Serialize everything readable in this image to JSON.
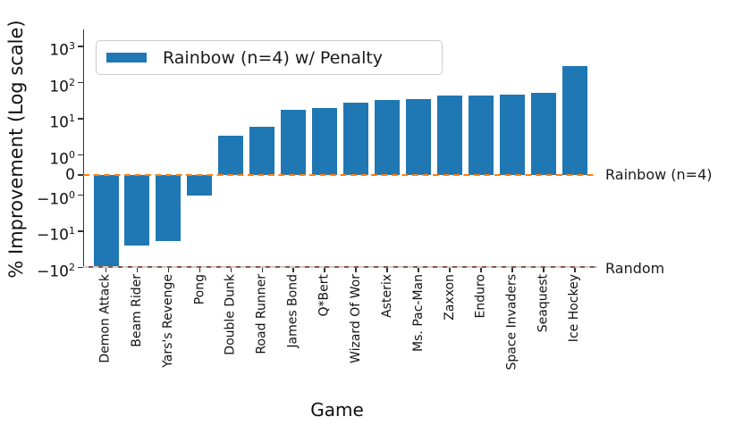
{
  "chart_data": {
    "type": "bar",
    "title": "",
    "xlabel": "Game",
    "ylabel": "% Improvement (Log scale)",
    "yscale": "symlog",
    "ylim": [
      -100,
      2500
    ],
    "grid": false,
    "bar_color": "#1f77b4",
    "categories": [
      "Demon Attack",
      "Beam Rider",
      "Yars's Revenge",
      "Pong",
      "Double Dunk",
      "Road Runner",
      "James Bond",
      "Q*Bert",
      "Wizard Of Wor",
      "Asterix",
      "Ms. Pac-Man",
      "Zaxxon",
      "Enduro",
      "Space Invaders",
      "Seaquest",
      "Ice Hockey"
    ],
    "values": [
      -92,
      -25,
      -19,
      -1,
      3.4,
      6,
      18,
      20,
      28,
      33,
      34,
      45,
      45,
      47,
      53,
      290
    ],
    "yticks": [
      {
        "value": 1000,
        "label": "10^3"
      },
      {
        "value": 100,
        "label": "10^2"
      },
      {
        "value": 10,
        "label": "10^1"
      },
      {
        "value": 1,
        "label": "10^0"
      },
      {
        "value": 0,
        "label": "0"
      },
      {
        "value": -1,
        "label": "−10^0"
      },
      {
        "value": -10,
        "label": "−10^1"
      },
      {
        "value": -100,
        "label": "−10^2"
      }
    ],
    "legend": {
      "position": "upper left",
      "entries": [
        {
          "label": "Rainbow (n=4) w/ Penalty",
          "color": "#1f77b4"
        }
      ]
    },
    "baselines": [
      {
        "label": "Rainbow (n=4)",
        "value": 0,
        "color": "#ff7f0e",
        "style": "dashed"
      },
      {
        "label": "Random",
        "value": -100,
        "color": "#8c564b",
        "style": "solid"
      }
    ]
  }
}
